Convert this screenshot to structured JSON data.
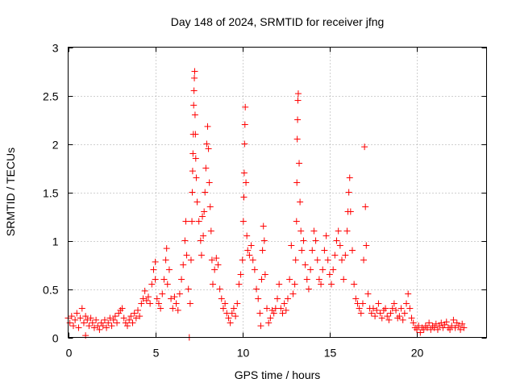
{
  "chart_data": {
    "type": "scatter",
    "title": "Day 148 of 2024, SRMTID for receiver jfng",
    "xlabel": "GPS time / hours",
    "ylabel": "SRMTID / TECUs",
    "xlim": [
      0,
      24
    ],
    "ylim": [
      0,
      3
    ],
    "xticks": [
      0,
      5,
      10,
      15,
      20
    ],
    "xtick_labels": [
      "0",
      "5",
      "10",
      "15",
      "20"
    ],
    "yticks": [
      0,
      0.5,
      1,
      1.5,
      2,
      2.5,
      3
    ],
    "ytick_labels": [
      "0",
      "0.5",
      "1",
      "1.5",
      "2",
      "2.5",
      "3"
    ],
    "grid": true,
    "marker": "plus",
    "series": [
      {
        "name": "SRMTID",
        "color": "#ff0000",
        "points": [
          [
            0.0,
            0.2
          ],
          [
            0.1,
            0.15
          ],
          [
            0.2,
            0.22
          ],
          [
            0.3,
            0.12
          ],
          [
            0.4,
            0.18
          ],
          [
            0.5,
            0.25
          ],
          [
            0.6,
            0.1
          ],
          [
            0.7,
            0.2
          ],
          [
            0.8,
            0.3
          ],
          [
            0.9,
            0.15
          ],
          [
            1.0,
            0.22
          ],
          [
            1.0,
            0.02
          ],
          [
            1.1,
            0.18
          ],
          [
            1.2,
            0.12
          ],
          [
            1.3,
            0.2
          ],
          [
            1.4,
            0.15
          ],
          [
            1.5,
            0.1
          ],
          [
            1.6,
            0.18
          ],
          [
            1.7,
            0.12
          ],
          [
            1.8,
            0.08
          ],
          [
            1.9,
            0.15
          ],
          [
            2.0,
            0.12
          ],
          [
            2.1,
            0.18
          ],
          [
            2.2,
            0.1
          ],
          [
            2.3,
            0.15
          ],
          [
            2.4,
            0.2
          ],
          [
            2.5,
            0.12
          ],
          [
            2.6,
            0.18
          ],
          [
            2.7,
            0.22
          ],
          [
            2.8,
            0.15
          ],
          [
            2.9,
            0.25
          ],
          [
            3.0,
            0.28
          ],
          [
            3.1,
            0.3
          ],
          [
            3.2,
            0.2
          ],
          [
            3.3,
            0.15
          ],
          [
            3.4,
            0.12
          ],
          [
            3.5,
            0.18
          ],
          [
            3.6,
            0.22
          ],
          [
            3.7,
            0.15
          ],
          [
            3.8,
            0.25
          ],
          [
            3.9,
            0.2
          ],
          [
            4.0,
            0.28
          ],
          [
            4.1,
            0.22
          ],
          [
            4.2,
            0.35
          ],
          [
            4.3,
            0.4
          ],
          [
            4.4,
            0.48
          ],
          [
            4.5,
            0.38
          ],
          [
            4.6,
            0.42
          ],
          [
            4.7,
            0.35
          ],
          [
            4.8,
            0.55
          ],
          [
            4.9,
            0.7
          ],
          [
            5.0,
            0.6
          ],
          [
            5.0,
            0.78
          ],
          [
            5.1,
            0.4
          ],
          [
            5.2,
            0.35
          ],
          [
            5.3,
            0.3
          ],
          [
            5.4,
            0.45
          ],
          [
            5.5,
            0.6
          ],
          [
            5.6,
            0.8
          ],
          [
            5.65,
            0.92
          ],
          [
            5.7,
            0.55
          ],
          [
            5.8,
            0.7
          ],
          [
            5.9,
            0.4
          ],
          [
            6.0,
            0.3
          ],
          [
            6.1,
            0.42
          ],
          [
            6.2,
            0.35
          ],
          [
            6.3,
            0.28
          ],
          [
            6.4,
            0.45
          ],
          [
            6.5,
            0.6
          ],
          [
            6.6,
            0.75
          ],
          [
            6.7,
            1.0
          ],
          [
            6.75,
            1.2
          ],
          [
            6.8,
            0.85
          ],
          [
            6.9,
            0.5
          ],
          [
            6.95,
            0.0
          ],
          [
            7.0,
            0.35
          ],
          [
            7.05,
            0.8
          ],
          [
            7.1,
            1.2
          ],
          [
            7.12,
            1.5
          ],
          [
            7.14,
            1.72
          ],
          [
            7.16,
            1.9
          ],
          [
            7.18,
            2.1
          ],
          [
            7.2,
            2.4
          ],
          [
            7.22,
            2.55
          ],
          [
            7.24,
            2.68
          ],
          [
            7.26,
            2.75
          ],
          [
            7.28,
            2.3
          ],
          [
            7.3,
            2.1
          ],
          [
            7.32,
            1.85
          ],
          [
            7.35,
            1.65
          ],
          [
            7.4,
            1.4
          ],
          [
            7.5,
            1.2
          ],
          [
            7.6,
            1.0
          ],
          [
            7.65,
            0.85
          ],
          [
            7.7,
            1.25
          ],
          [
            7.75,
            1.05
          ],
          [
            7.8,
            1.3
          ],
          [
            7.85,
            1.5
          ],
          [
            7.9,
            1.75
          ],
          [
            7.95,
            2.0
          ],
          [
            8.0,
            2.18
          ],
          [
            8.05,
            1.95
          ],
          [
            8.1,
            1.6
          ],
          [
            8.15,
            1.35
          ],
          [
            8.2,
            1.1
          ],
          [
            8.25,
            0.8
          ],
          [
            8.3,
            0.55
          ],
          [
            8.4,
            0.7
          ],
          [
            8.5,
            0.82
          ],
          [
            8.6,
            0.75
          ],
          [
            8.7,
            0.5
          ],
          [
            8.8,
            0.4
          ],
          [
            8.9,
            0.3
          ],
          [
            9.0,
            0.35
          ],
          [
            9.1,
            0.25
          ],
          [
            9.2,
            0.2
          ],
          [
            9.3,
            0.15
          ],
          [
            9.4,
            0.25
          ],
          [
            9.5,
            0.3
          ],
          [
            9.6,
            0.22
          ],
          [
            9.7,
            0.35
          ],
          [
            9.8,
            0.55
          ],
          [
            9.9,
            0.65
          ],
          [
            10.0,
            0.8
          ],
          [
            10.05,
            1.2
          ],
          [
            10.08,
            1.45
          ],
          [
            10.1,
            1.7
          ],
          [
            10.12,
            2.0
          ],
          [
            10.14,
            2.2
          ],
          [
            10.16,
            2.38
          ],
          [
            10.2,
            1.6
          ],
          [
            10.25,
            1.05
          ],
          [
            10.3,
            0.9
          ],
          [
            10.4,
            0.85
          ],
          [
            10.5,
            0.95
          ],
          [
            10.6,
            0.8
          ],
          [
            10.7,
            0.7
          ],
          [
            10.8,
            0.5
          ],
          [
            10.9,
            0.4
          ],
          [
            11.0,
            0.25
          ],
          [
            11.05,
            0.12
          ],
          [
            11.1,
            0.6
          ],
          [
            11.15,
            0.9
          ],
          [
            11.2,
            1.15
          ],
          [
            11.25,
            1.0
          ],
          [
            11.3,
            0.65
          ],
          [
            11.4,
            0.3
          ],
          [
            11.5,
            0.15
          ],
          [
            11.6,
            0.2
          ],
          [
            11.7,
            0.28
          ],
          [
            11.8,
            0.25
          ],
          [
            11.9,
            0.3
          ],
          [
            12.0,
            0.4
          ],
          [
            12.1,
            0.55
          ],
          [
            12.2,
            0.3
          ],
          [
            12.3,
            0.25
          ],
          [
            12.4,
            0.35
          ],
          [
            12.5,
            0.28
          ],
          [
            12.6,
            0.4
          ],
          [
            12.7,
            0.6
          ],
          [
            12.8,
            0.95
          ],
          [
            12.9,
            0.45
          ],
          [
            13.0,
            0.55
          ],
          [
            13.05,
            0.8
          ],
          [
            13.1,
            1.2
          ],
          [
            13.12,
            1.6
          ],
          [
            13.14,
            2.05
          ],
          [
            13.16,
            2.25
          ],
          [
            13.18,
            2.45
          ],
          [
            13.2,
            2.52
          ],
          [
            13.25,
            1.8
          ],
          [
            13.3,
            1.4
          ],
          [
            13.35,
            1.1
          ],
          [
            13.4,
            0.9
          ],
          [
            13.5,
            1.0
          ],
          [
            13.6,
            0.75
          ],
          [
            13.7,
            0.6
          ],
          [
            13.8,
            0.5
          ],
          [
            13.9,
            0.7
          ],
          [
            14.0,
            0.9
          ],
          [
            14.1,
            1.1
          ],
          [
            14.2,
            1.0
          ],
          [
            14.3,
            0.8
          ],
          [
            14.4,
            0.6
          ],
          [
            14.5,
            0.55
          ],
          [
            14.6,
            0.7
          ],
          [
            14.7,
            0.9
          ],
          [
            14.8,
            1.05
          ],
          [
            14.9,
            0.8
          ],
          [
            15.0,
            0.65
          ],
          [
            15.1,
            0.55
          ],
          [
            15.2,
            0.7
          ],
          [
            15.3,
            0.85
          ],
          [
            15.4,
            1.0
          ],
          [
            15.5,
            1.1
          ],
          [
            15.6,
            0.95
          ],
          [
            15.7,
            0.8
          ],
          [
            15.8,
            0.6
          ],
          [
            15.9,
            0.85
          ],
          [
            16.0,
            1.1
          ],
          [
            16.05,
            1.3
          ],
          [
            16.1,
            1.5
          ],
          [
            16.15,
            1.65
          ],
          [
            16.2,
            1.3
          ],
          [
            16.3,
            0.9
          ],
          [
            16.4,
            0.55
          ],
          [
            16.5,
            0.4
          ],
          [
            16.6,
            0.35
          ],
          [
            16.7,
            0.3
          ],
          [
            16.8,
            0.25
          ],
          [
            16.9,
            0.35
          ],
          [
            16.95,
            0.8
          ],
          [
            17.0,
            1.97
          ],
          [
            17.05,
            1.35
          ],
          [
            17.1,
            0.95
          ],
          [
            17.2,
            0.45
          ],
          [
            17.3,
            0.3
          ],
          [
            17.4,
            0.25
          ],
          [
            17.5,
            0.3
          ],
          [
            17.6,
            0.22
          ],
          [
            17.7,
            0.28
          ],
          [
            17.8,
            0.35
          ],
          [
            17.9,
            0.25
          ],
          [
            18.0,
            0.2
          ],
          [
            18.1,
            0.28
          ],
          [
            18.2,
            0.3
          ],
          [
            18.3,
            0.22
          ],
          [
            18.4,
            0.18
          ],
          [
            18.5,
            0.25
          ],
          [
            18.6,
            0.3
          ],
          [
            18.7,
            0.35
          ],
          [
            18.8,
            0.28
          ],
          [
            18.9,
            0.2
          ],
          [
            19.0,
            0.22
          ],
          [
            19.1,
            0.3
          ],
          [
            19.2,
            0.18
          ],
          [
            19.3,
            0.25
          ],
          [
            19.4,
            0.35
          ],
          [
            19.5,
            0.45
          ],
          [
            19.6,
            0.3
          ],
          [
            19.7,
            0.2
          ],
          [
            19.8,
            0.15
          ],
          [
            19.9,
            0.1
          ],
          [
            20.0,
            0.08
          ],
          [
            20.1,
            0.12
          ],
          [
            20.2,
            0.05
          ],
          [
            20.3,
            0.1
          ],
          [
            20.4,
            0.08
          ],
          [
            20.5,
            0.12
          ],
          [
            20.6,
            0.1
          ],
          [
            20.7,
            0.15
          ],
          [
            20.8,
            0.08
          ],
          [
            20.9,
            0.12
          ],
          [
            21.0,
            0.1
          ],
          [
            21.1,
            0.14
          ],
          [
            21.2,
            0.08
          ],
          [
            21.3,
            0.12
          ],
          [
            21.4,
            0.15
          ],
          [
            21.5,
            0.1
          ],
          [
            21.6,
            0.13
          ],
          [
            21.7,
            0.16
          ],
          [
            21.8,
            0.1
          ],
          [
            21.9,
            0.08
          ],
          [
            22.0,
            0.12
          ],
          [
            22.1,
            0.18
          ],
          [
            22.2,
            0.1
          ],
          [
            22.3,
            0.15
          ],
          [
            22.4,
            0.12
          ],
          [
            22.5,
            0.08
          ],
          [
            22.6,
            0.14
          ],
          [
            22.7,
            0.1
          ]
        ]
      }
    ]
  }
}
